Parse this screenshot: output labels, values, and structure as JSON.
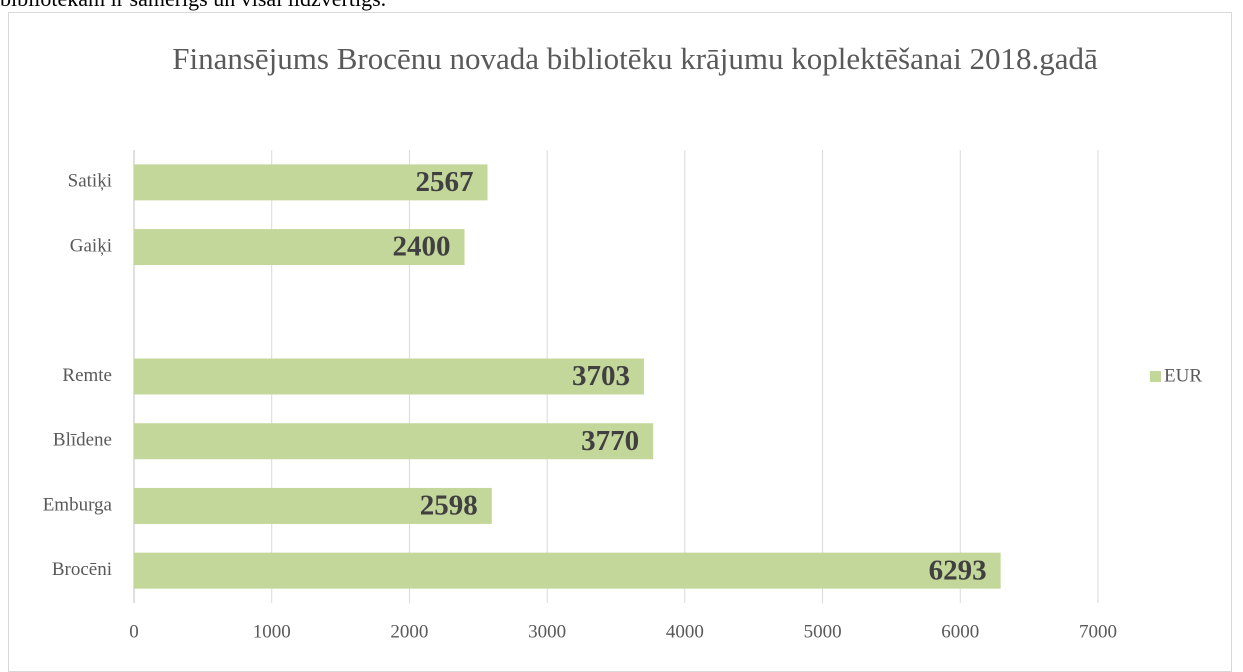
{
  "page_text": "bibliotēkām ir samērīgs un visai līdzvērtīgs.",
  "chart_data": {
    "type": "bar",
    "orientation": "horizontal",
    "title": "Finansējums Brocēnu novada bibliotēku krājumu koplektēšanai 2018.gadā",
    "categories": [
      "Satiķi",
      "Gaiķi",
      null,
      "Remte",
      "Blīdene",
      "Emburga",
      "Brocēni"
    ],
    "series": [
      {
        "name": "EUR",
        "color": "#c4d79b",
        "values": [
          2567,
          2400,
          null,
          3703,
          3770,
          2598,
          6293
        ]
      }
    ],
    "xlim": [
      0,
      7000
    ],
    "xticks": [
      0,
      1000,
      2000,
      3000,
      4000,
      5000,
      6000,
      7000
    ],
    "grid": true,
    "legend": "right"
  }
}
